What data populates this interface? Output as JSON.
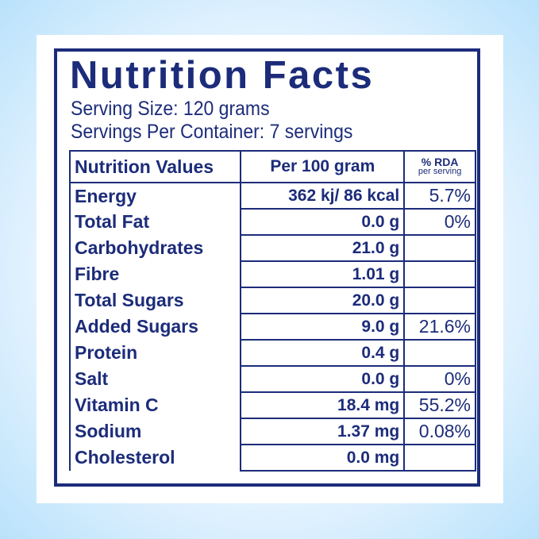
{
  "title": "Nutrition Facts",
  "serving_size": "Serving Size: 120 grams",
  "servings_per_container": "Servings Per Container: 7 servings",
  "table": {
    "headers": {
      "nutrient": "Nutrition Values",
      "per100": "Per 100 gram",
      "rda_top": "% RDA",
      "rda_bottom": "per serving"
    },
    "rows": [
      {
        "nutrient": "Energy",
        "per100": "362 kj/ 86 kcal",
        "rda": "5.7%"
      },
      {
        "nutrient": "Total Fat",
        "per100": "0.0 g",
        "rda": "0%"
      },
      {
        "nutrient": "Carbohydrates",
        "per100": "21.0 g",
        "rda": ""
      },
      {
        "nutrient": "Fibre",
        "per100": "1.01 g",
        "rda": ""
      },
      {
        "nutrient": "Total Sugars",
        "per100": "20.0 g",
        "rda": ""
      },
      {
        "nutrient": "Added Sugars",
        "per100": "9.0 g",
        "rda": "21.6%"
      },
      {
        "nutrient": "Protein",
        "per100": "0.4 g",
        "rda": ""
      },
      {
        "nutrient": "Salt",
        "per100": "0.0 g",
        "rda": "0%"
      },
      {
        "nutrient": "Vitamin C",
        "per100": "18.4 mg",
        "rda": "55.2%"
      },
      {
        "nutrient": "Sodium",
        "per100": "1.37 mg",
        "rda": "0.08%"
      },
      {
        "nutrient": "Cholesterol",
        "per100": "0.0 mg",
        "rda": ""
      }
    ]
  },
  "colors": {
    "ink": "#1c2c7a",
    "background_edge": "#b9e2fb",
    "card": "#ffffff"
  }
}
